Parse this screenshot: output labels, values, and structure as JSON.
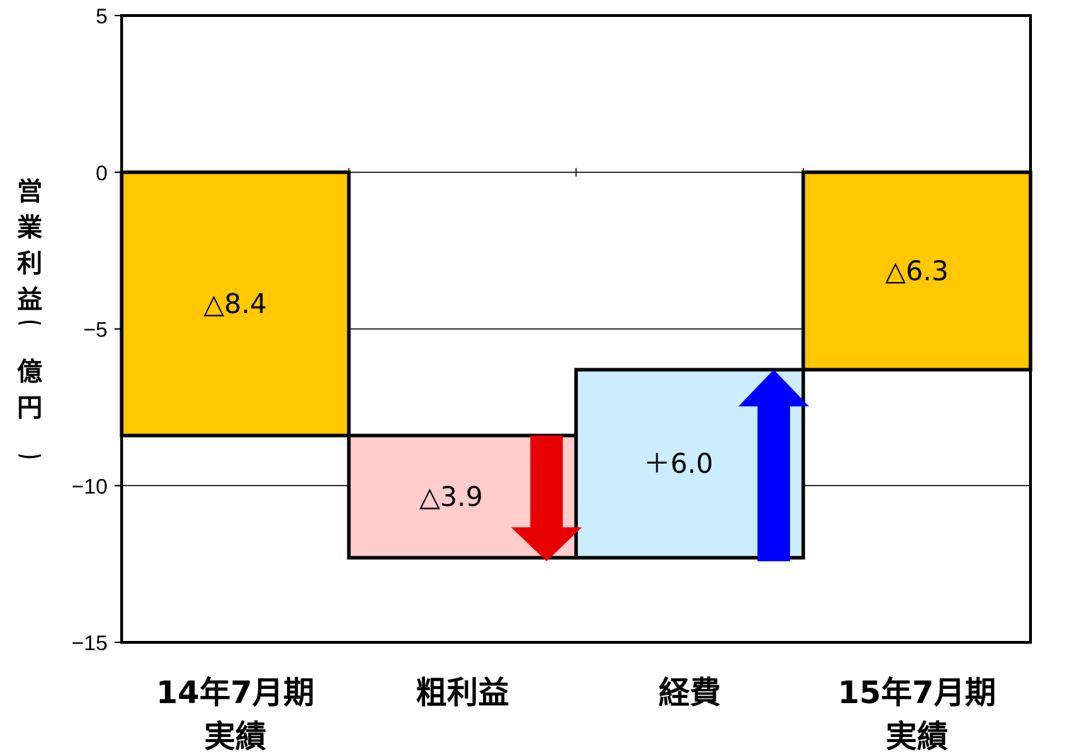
{
  "chart_data": {
    "type": "bar",
    "subtype": "waterfall",
    "ylabel": "営業利益（億円）",
    "ylim": [
      -15,
      5
    ],
    "yticks": [
      "5",
      "0",
      "-5",
      "-10",
      "-15"
    ],
    "grid": true,
    "categories": [
      "14年7月期\n実績",
      "粗利益",
      "経費",
      "15年7月期\n実績"
    ],
    "bars": [
      {
        "category": "14年7月期\n実績",
        "start": 0,
        "end": -8.4,
        "label": "△8.4",
        "color": "#FFC800",
        "arrow": "none"
      },
      {
        "category": "粗利益",
        "start": -8.4,
        "end": -12.3,
        "label": "△3.9",
        "color": "#FFCCCC",
        "arrow": "down",
        "arrow_color": "#E60000"
      },
      {
        "category": "経費",
        "start": -12.3,
        "end": -6.3,
        "label": "＋6.0",
        "color": "#CCECFF",
        "arrow": "up",
        "arrow_color": "#0000FF"
      },
      {
        "category": "15年7月期\n実績",
        "start": 0,
        "end": -6.3,
        "label": "△6.3",
        "color": "#FFC800",
        "arrow": "none"
      }
    ]
  }
}
